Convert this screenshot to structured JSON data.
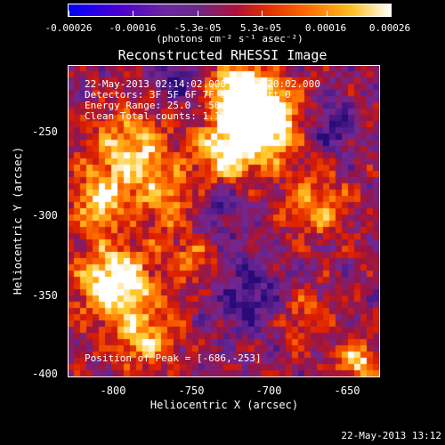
{
  "colorbar": {
    "labels": [
      "-0.00026",
      "-0.00016",
      "-5.3e-05",
      "5.3e-05",
      "0.00016",
      "0.00026"
    ],
    "unit": "(photons cm⁻² s⁻¹ asec⁻²)"
  },
  "title": "Reconstructed RHESSI Image",
  "info": {
    "time_range": "22-May-2013 02:14:02.000 to 02:20:02.000",
    "detectors": "Detectors: 3F 5F 6F 7F 8F 9F, Att 0",
    "energy": "Energy Range: 25.0 - 50.0 keV",
    "clean": "Clean     Total counts: 1.15E+04"
  },
  "peak": "Position of Peak = [-686,-253]",
  "axes": {
    "xlabel": "Heliocentric X (arcsec)",
    "ylabel": "Heliocentric Y (arcsec)",
    "xticks": [
      "-800",
      "-750",
      "-700",
      "-650"
    ],
    "yticks": [
      "-250",
      "-300",
      "-350",
      "-400"
    ]
  },
  "timestamp": "22-May-2013 13:12"
}
